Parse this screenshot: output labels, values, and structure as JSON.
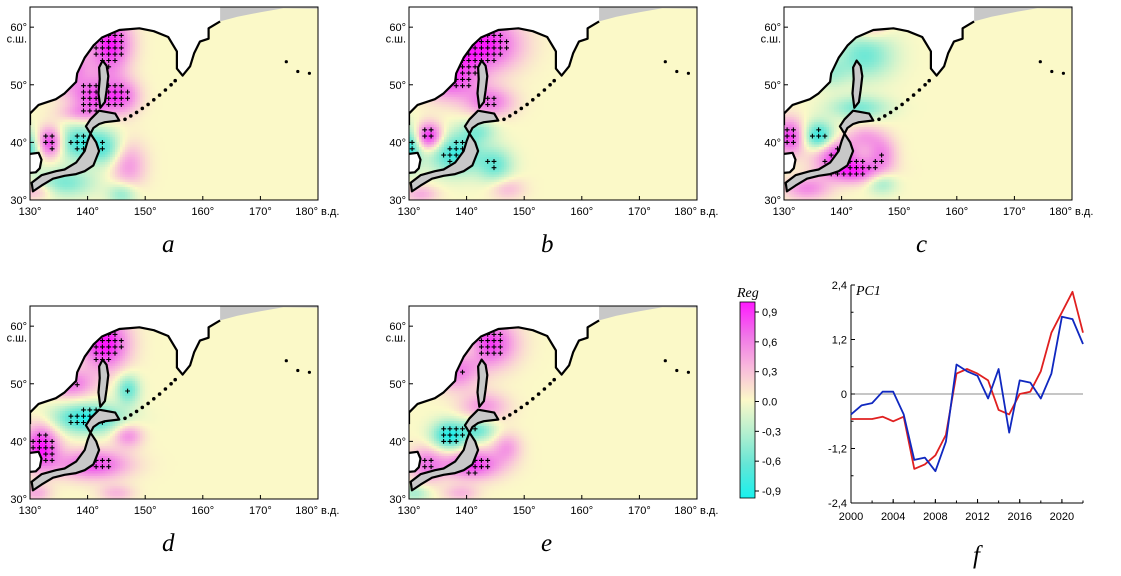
{
  "panels": [
    {
      "id": "a",
      "label": "a",
      "x_ticks": [
        "130°",
        "140°",
        "150°",
        "160°",
        "170°",
        "180°"
      ],
      "x_unit": "в.д.",
      "y_ticks": [
        "30°",
        "40°",
        "50°",
        "60°"
      ],
      "y_unit": "с.ш.",
      "blobs": [
        [
          5.5,
          53,
          0.75,
          4.5,
          3.5
        ],
        [
          14,
          57,
          0.9,
          3.5,
          4.5
        ],
        [
          11,
          48,
          0.7,
          4,
          3
        ],
        [
          16,
          48,
          0.6,
          3,
          3
        ],
        [
          3.5,
          40,
          0.95,
          2.5,
          2.6
        ],
        [
          8,
          40,
          -0.7,
          4,
          3
        ],
        [
          0,
          39,
          -0.7,
          2,
          3
        ],
        [
          13,
          39,
          -0.55,
          3,
          3
        ],
        [
          17,
          36,
          0.45,
          3,
          4
        ],
        [
          6,
          33,
          -0.5,
          5,
          2.5
        ],
        [
          1,
          31.5,
          0.35,
          3,
          1.5
        ],
        [
          16,
          31,
          -0.45,
          2.5,
          2
        ],
        [
          9,
          45,
          0.35,
          4,
          1.5
        ],
        [
          14,
          52,
          0.1,
          2.5,
          2
        ]
      ]
    },
    {
      "id": "b",
      "label": "b",
      "x_ticks": [
        "130°",
        "140°",
        "150°",
        "160°",
        "170°",
        "180°"
      ],
      "x_unit": "в.д.",
      "y_ticks": [
        "30°",
        "40°",
        "50°",
        "60°"
      ],
      "y_unit": "с.ш.",
      "blobs": [
        [
          13,
          57,
          0.9,
          6,
          4.5
        ],
        [
          7,
          51,
          0.75,
          5,
          3.5
        ],
        [
          14,
          47,
          0.6,
          4,
          2.5
        ],
        [
          3.5,
          41,
          0.95,
          2.3,
          2.3
        ],
        [
          0,
          39,
          -0.8,
          2,
          3.5
        ],
        [
          8,
          38,
          -0.75,
          4.5,
          3.5
        ],
        [
          15,
          36,
          -0.55,
          3,
          3
        ],
        [
          12,
          42,
          -0.4,
          3,
          2
        ],
        [
          17,
          32,
          0.3,
          3,
          2
        ],
        [
          2,
          31,
          0.35,
          3,
          1.5
        ],
        [
          9,
          55,
          0.2,
          3,
          2
        ]
      ]
    },
    {
      "id": "c",
      "label": "c",
      "x_ticks": [
        "130°",
        "140°",
        "150°",
        "160°",
        "170°",
        "180°"
      ],
      "x_unit": "в.д.",
      "y_ticks": [
        "30°",
        "40°",
        "50°",
        "60°"
      ],
      "y_unit": "с.ш.",
      "blobs": [
        [
          14,
          55,
          -0.55,
          5,
          4
        ],
        [
          8,
          52,
          -0.3,
          3,
          2.5
        ],
        [
          13,
          46,
          -0.5,
          5,
          2
        ],
        [
          6,
          41,
          -0.85,
          2.5,
          2.5
        ],
        [
          1,
          41,
          0.8,
          2.5,
          3
        ],
        [
          9,
          38,
          0.75,
          4,
          2.5
        ],
        [
          12,
          35,
          0.8,
          5,
          2
        ],
        [
          4,
          32,
          0.5,
          4,
          2
        ],
        [
          14,
          41,
          0.35,
          3,
          2
        ],
        [
          17,
          38,
          0.5,
          2.5,
          3
        ],
        [
          17,
          33,
          -0.4,
          2.5,
          2
        ],
        [
          15,
          60,
          0.35,
          3,
          2
        ]
      ]
    },
    {
      "id": "d",
      "label": "d",
      "x_ticks": [
        "130°",
        "140°",
        "150°",
        "160°",
        "170°",
        "180°"
      ],
      "x_unit": "в.д.",
      "y_ticks": [
        "30°",
        "40°",
        "50°",
        "60°"
      ],
      "y_unit": "с.ш.",
      "blobs": [
        [
          13,
          57,
          0.95,
          4,
          4.5
        ],
        [
          7,
          50,
          0.6,
          4,
          2.5
        ],
        [
          17,
          49,
          -0.6,
          2,
          2.5
        ],
        [
          10,
          44,
          -0.85,
          6,
          2.5
        ],
        [
          2,
          39,
          0.9,
          3,
          4
        ],
        [
          11,
          36,
          0.75,
          6,
          2.5
        ],
        [
          17,
          41,
          0.5,
          2.5,
          2
        ],
        [
          1,
          31,
          0.35,
          2.5,
          1.5
        ],
        [
          15,
          31,
          0.3,
          3,
          1.5
        ]
      ]
    },
    {
      "id": "e",
      "label": "e",
      "x_ticks": [
        "130°",
        "140°",
        "150°",
        "160°",
        "170°",
        "180°"
      ],
      "x_unit": "в.д.",
      "y_ticks": [
        "30°",
        "40°",
        "50°",
        "60°"
      ],
      "y_unit": "с.ш.",
      "blobs": [
        [
          14,
          57,
          0.8,
          4.5,
          4
        ],
        [
          8,
          52,
          0.55,
          4,
          3
        ],
        [
          11,
          56,
          -0.2,
          2,
          2
        ],
        [
          13,
          46,
          0.45,
          4,
          2.5
        ],
        [
          7,
          41,
          -0.85,
          3,
          2.5
        ],
        [
          12,
          42,
          -0.55,
          3,
          2
        ],
        [
          3,
          36,
          0.55,
          3,
          3
        ],
        [
          11,
          36,
          0.8,
          5,
          2.5
        ],
        [
          17,
          39,
          0.4,
          2.5,
          2.5
        ],
        [
          1,
          31,
          -0.35,
          2.5,
          1.5
        ],
        [
          9,
          31,
          0.3,
          3,
          1.5
        ]
      ]
    }
  ],
  "colorbar": {
    "title": "Reg",
    "ticks": [
      "0,9",
      "0,6",
      "0,3",
      "0.0",
      "-0,3",
      "-0,6",
      "-0,9"
    ],
    "range": [
      -0.9,
      0.9
    ]
  },
  "pc_label": "f",
  "chart_data": {
    "type": "line",
    "title": "PC1",
    "x_ticks": [
      "2000",
      "2004",
      "2008",
      "2012",
      "2016",
      "2020"
    ],
    "y_ticks": [
      "2,4",
      "1,2",
      "0",
      "-1,2",
      "-2,4"
    ],
    "xlim": [
      2000,
      2022
    ],
    "ylim": [
      -2.4,
      2.4
    ],
    "grid": false,
    "series": [
      {
        "color": "#e02020",
        "x": [
          2000,
          2001,
          2002,
          2003,
          2004,
          2005,
          2006,
          2007,
          2008,
          2009,
          2010,
          2011,
          2012,
          2013,
          2014,
          2015,
          2016,
          2017,
          2018,
          2019,
          2020,
          2021,
          2022
        ],
        "values": [
          -0.55,
          -0.55,
          -0.55,
          -0.5,
          -0.6,
          -0.5,
          -1.65,
          -1.55,
          -1.35,
          -0.9,
          0.45,
          0.55,
          0.45,
          0.3,
          -0.35,
          -0.45,
          0.0,
          0.05,
          0.5,
          1.35,
          1.8,
          2.25,
          1.35
        ]
      },
      {
        "color": "#1028c0",
        "x": [
          2000,
          2001,
          2002,
          2003,
          2004,
          2005,
          2006,
          2007,
          2008,
          2009,
          2010,
          2011,
          2012,
          2013,
          2014,
          2015,
          2016,
          2017,
          2018,
          2019,
          2020,
          2021,
          2022
        ],
        "values": [
          -0.45,
          -0.25,
          -0.2,
          0.05,
          0.05,
          -0.45,
          -1.45,
          -1.4,
          -1.7,
          -1.05,
          0.65,
          0.5,
          0.4,
          -0.1,
          0.55,
          -0.85,
          0.3,
          0.25,
          -0.1,
          0.45,
          1.7,
          1.65,
          1.1
        ]
      }
    ]
  }
}
